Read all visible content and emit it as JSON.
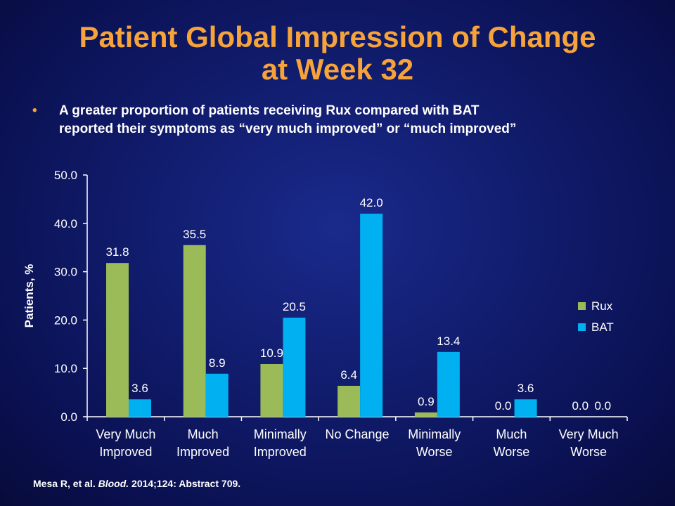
{
  "slide": {
    "title_line1": "Patient Global Impression of Change",
    "title_line2": "at Week 32",
    "bullet_marker": "•",
    "bullet_line1": "A greater proportion of patients receiving Rux compared with BAT",
    "bullet_line2": "reported their symptoms as “very much improved” or “much improved”",
    "footnote_authors": "Mesa R, et al. ",
    "footnote_journal": "Blood.",
    "footnote_rest": " 2014;124: Abstract 709."
  },
  "chart_data": {
    "type": "bar",
    "ylabel": "Patients, %",
    "ylim": [
      0,
      50
    ],
    "yticks": [
      "0.0",
      "10.0",
      "20.0",
      "30.0",
      "40.0",
      "50.0"
    ],
    "categories": [
      [
        "Very Much",
        "Improved"
      ],
      [
        "Much",
        "Improved"
      ],
      [
        "Minimally",
        "Improved"
      ],
      [
        "No Change"
      ],
      [
        "Minimally",
        "Worse"
      ],
      [
        "Much",
        "Worse"
      ],
      [
        "Very Much",
        "Worse"
      ]
    ],
    "series": [
      {
        "name": "Rux",
        "color": "#9bbb59",
        "values": [
          31.8,
          35.5,
          10.9,
          6.4,
          0.9,
          0.0,
          0.0
        ],
        "labels": [
          "31.8",
          "35.5",
          "10.9",
          "6.4",
          "0.9",
          "0.0",
          "0.0"
        ]
      },
      {
        "name": "BAT",
        "color": "#00b0f0",
        "values": [
          3.6,
          8.9,
          20.5,
          42.0,
          13.4,
          3.6,
          0.0
        ],
        "labels": [
          "3.6",
          "8.9",
          "20.5",
          "42.0",
          "13.4",
          "3.6",
          "0.0"
        ]
      }
    ],
    "legend_position": "right",
    "grid": false
  }
}
